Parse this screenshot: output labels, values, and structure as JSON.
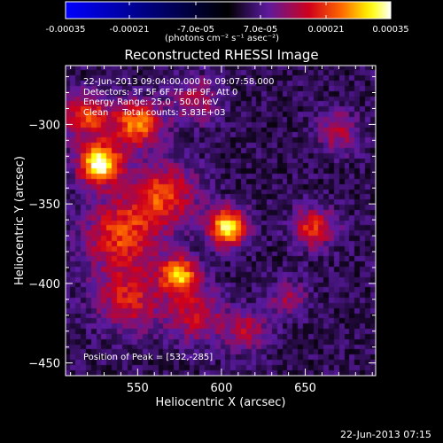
{
  "colorbar": {
    "ticks": [
      "-0.00035",
      "-0.00021",
      "-7.0e-05",
      "7.0e-05",
      "0.00021",
      "0.00035"
    ],
    "unit_text": "(photons cm⁻² s⁻¹ asec⁻²)",
    "range": [
      -0.00035,
      0.00035
    ],
    "colors": [
      "#0000ff",
      "#000000",
      "#5a1aa0",
      "#d0001a",
      "#ff6a00",
      "#ffff00",
      "#ffffff"
    ]
  },
  "chart_data": {
    "type": "heatmap",
    "title": "Reconstructed RHESSI Image",
    "xlabel": "Heliocentric X (arcsec)",
    "ylabel": "Heliocentric Y (arcsec)",
    "xlim": [
      507,
      692
    ],
    "ylim": [
      -458,
      -263
    ],
    "x_ticks": [
      550,
      600,
      650
    ],
    "y_ticks": [
      -300,
      -350,
      -400,
      -450
    ],
    "grid": false,
    "info_lines": [
      "22-Jun-2013 09:04:00.000 to 09:07:58.000",
      "Detectors: 3F 5F 6F 7F 8F 9F, Att 0",
      "Energy Range: 25.0 - 50.0 keV",
      "Clean     Total counts: 5.83E+03"
    ],
    "peak_label": "Position of Peak = [532,-285]",
    "sources": [
      {
        "x": 528,
        "y": -325,
        "amp": 1.0,
        "sig": 9
      },
      {
        "x": 604,
        "y": -365,
        "amp": 0.95,
        "sig": 8
      },
      {
        "x": 575,
        "y": -395,
        "amp": 0.75,
        "sig": 8
      },
      {
        "x": 550,
        "y": -300,
        "amp": 0.7,
        "sig": 10
      },
      {
        "x": 565,
        "y": -345,
        "amp": 0.55,
        "sig": 14
      },
      {
        "x": 540,
        "y": -370,
        "amp": 0.55,
        "sig": 15
      },
      {
        "x": 545,
        "y": -410,
        "amp": 0.45,
        "sig": 14
      },
      {
        "x": 585,
        "y": -420,
        "amp": 0.4,
        "sig": 12
      },
      {
        "x": 520,
        "y": -295,
        "amp": 0.55,
        "sig": 10
      },
      {
        "x": 655,
        "y": -365,
        "amp": 0.5,
        "sig": 9
      },
      {
        "x": 670,
        "y": -305,
        "amp": 0.35,
        "sig": 9
      },
      {
        "x": 615,
        "y": -430,
        "amp": 0.35,
        "sig": 9
      },
      {
        "x": 640,
        "y": -410,
        "amp": 0.3,
        "sig": 8
      },
      {
        "x": 585,
        "y": -285,
        "amp": 0.35,
        "sig": 10
      }
    ]
  },
  "footer": {
    "timestamp": "22-Jun-2013 07:15"
  }
}
